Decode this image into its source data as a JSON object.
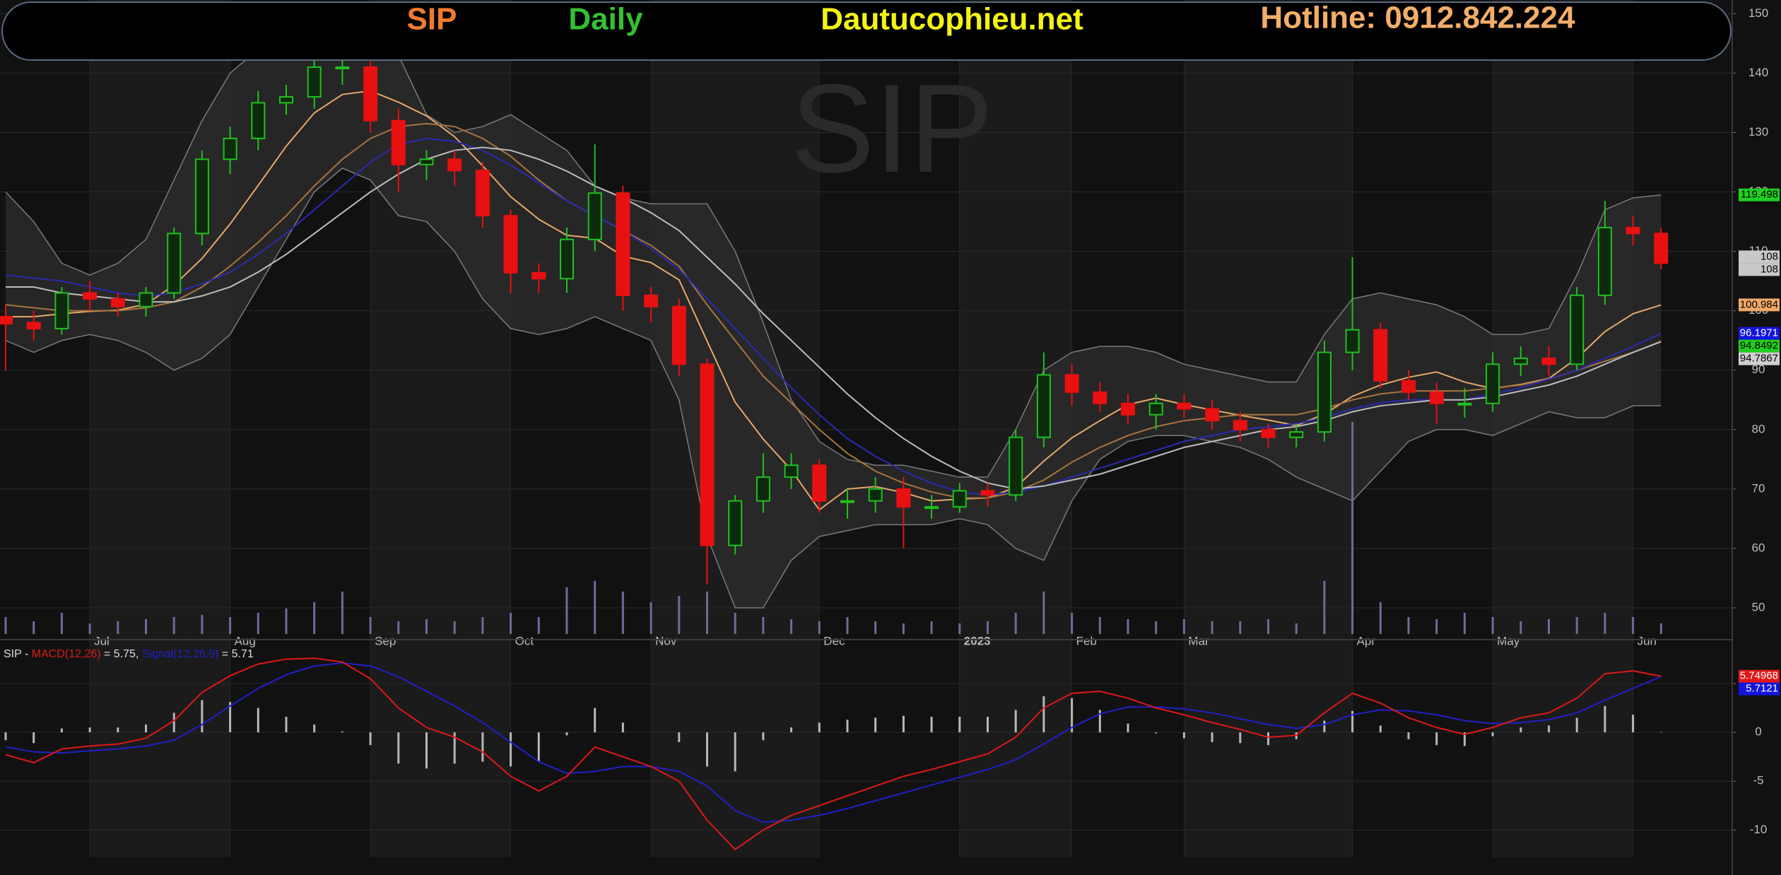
{
  "chart_data": {
    "type": "candlestick",
    "header": {
      "symbol": "SIP",
      "interval": "Daily",
      "site": "Dautucophieu.net",
      "hotline": "Hotline: 0912.842.224"
    },
    "watermark": "SIP",
    "categories": [
      null,
      null,
      null,
      "Jul",
      null,
      null,
      null,
      null,
      "Aug",
      null,
      null,
      null,
      null,
      "Sep",
      null,
      null,
      null,
      null,
      "Oct",
      null,
      null,
      null,
      null,
      "Nov",
      null,
      null,
      null,
      null,
      null,
      "Dec",
      null,
      null,
      null,
      null,
      "2023",
      null,
      null,
      null,
      "Feb",
      null,
      null,
      null,
      "Mar",
      null,
      null,
      null,
      null,
      null,
      "Apr",
      null,
      null,
      null,
      null,
      "May",
      null,
      null,
      null,
      null,
      "Jun",
      null
    ],
    "open": [
      99,
      98,
      97,
      103,
      102,
      100.7,
      103,
      113,
      125.5,
      129,
      135,
      136,
      141,
      141,
      132,
      124.6,
      125.5,
      123.6,
      116,
      106.4,
      105.4,
      112,
      119.8,
      102.6,
      100.7,
      91,
      60.5,
      68,
      72,
      74,
      68,
      68,
      70,
      67,
      67,
      69.7,
      69,
      78.7,
      89.2,
      86.3,
      84.4,
      82.5,
      84.4,
      83.5,
      81.5,
      80,
      78.7,
      79.6,
      93,
      96.8,
      88.2,
      86.3,
      84.4,
      84.4,
      91,
      92,
      91,
      102.6,
      114,
      113
    ],
    "high": [
      101,
      100,
      104,
      105,
      103,
      104,
      114,
      127,
      131,
      137,
      138,
      143,
      144,
      142,
      134,
      127,
      127,
      125,
      117,
      108,
      114,
      128,
      121,
      104,
      102,
      92,
      69,
      76,
      76,
      75,
      70,
      72,
      72,
      69,
      71,
      71,
      80,
      93,
      91,
      88,
      86,
      86,
      86,
      85,
      83,
      81,
      81,
      95,
      109,
      98,
      90,
      88,
      87,
      93,
      94,
      94,
      104,
      118.5,
      116,
      114
    ],
    "low": [
      90,
      95,
      96,
      100,
      99,
      99,
      102,
      111,
      123,
      127,
      133,
      134,
      138,
      130,
      120,
      122,
      121,
      114,
      103,
      103,
      103,
      110,
      100,
      98,
      89,
      54,
      59,
      66,
      70,
      66,
      65,
      66,
      60,
      65,
      66,
      67,
      68,
      77,
      84,
      83,
      81,
      80,
      82,
      80,
      78,
      77,
      77,
      78,
      90,
      87,
      85,
      81,
      82,
      83,
      89,
      89,
      90,
      101,
      111,
      107
    ],
    "close": [
      97.8,
      97,
      103,
      102,
      100.7,
      103,
      113,
      125.5,
      129,
      135,
      136,
      141,
      141,
      132,
      124.6,
      125.5,
      123.6,
      116,
      106.4,
      105.4,
      112,
      119.8,
      102.6,
      100.7,
      91,
      60.5,
      68,
      72,
      74,
      68,
      68,
      70,
      67,
      67,
      69.7,
      69,
      78.7,
      89.2,
      86.3,
      84.4,
      82.5,
      84.4,
      83.5,
      81.5,
      80,
      78.7,
      79.6,
      93,
      96.8,
      88.2,
      86.3,
      84.4,
      84.4,
      91,
      92,
      91,
      102.6,
      114,
      113,
      108
    ],
    "up_color": "#1fc01f",
    "down_color": "#e81010",
    "close_tag_color": "#c8c8c8",
    "bands": {
      "color": "#7a7a7a",
      "fill": "#2c2c2c",
      "upper": [
        120,
        115,
        108,
        106,
        108,
        112,
        122,
        132,
        140,
        144,
        146,
        147,
        146,
        145,
        143,
        133,
        130,
        131,
        133,
        130,
        127,
        121,
        119,
        118,
        118,
        118,
        110,
        98,
        85,
        78,
        75,
        74,
        74,
        73,
        72,
        72,
        80,
        90,
        93,
        94,
        94,
        93,
        91,
        90,
        89,
        88,
        88,
        96,
        102,
        103,
        102,
        101,
        99,
        96,
        96,
        97,
        106,
        117,
        119,
        119.498
      ],
      "lower": [
        95,
        93,
        95,
        96,
        95,
        93,
        90,
        92,
        96,
        104,
        112,
        120,
        124,
        122,
        116,
        115,
        110,
        102,
        97,
        96,
        97,
        99,
        97,
        95,
        85,
        62,
        50,
        50,
        58,
        62,
        63,
        64,
        64,
        64,
        65,
        64,
        60,
        58,
        68,
        75,
        78,
        79,
        79,
        78,
        77,
        75,
        72,
        70,
        68,
        73,
        78,
        80,
        80,
        79,
        81,
        83,
        82,
        82,
        84,
        84
      ],
      "tag_color": "#20d020"
    },
    "lines": [
      {
        "color": "#e6a86a",
        "tag_color": "#f0a868",
        "values": [
          99,
          99,
          99.5,
          99.9,
          100.1,
          101.1,
          104.3,
          108.8,
          114.6,
          121.1,
          127.7,
          133.3,
          136.4,
          137,
          135.1,
          132.8,
          129.3,
          124.4,
          119.2,
          115.4,
          112.7,
          112.2,
          109.2,
          108.1,
          105.2,
          94.9,
          84.6,
          78.4,
          73.2,
          66.5,
          70,
          70.4,
          69.4,
          68,
          68.3,
          68.5,
          70.3,
          74.7,
          78.6,
          81.5,
          84.2,
          85.3,
          84.2,
          83.3,
          82.4,
          81.6,
          80.7,
          82.6,
          85.6,
          87.5,
          88.8,
          89.7,
          88,
          86.9,
          87.6,
          88.6,
          92,
          96.5,
          99.5,
          100.984
        ]
      },
      {
        "color": "#a8743e",
        "tag_color": "#20d020",
        "values": [
          101,
          100.5,
          100,
          100,
          100,
          100.5,
          101.5,
          104,
          107.5,
          111.5,
          116,
          121,
          125.5,
          129,
          131,
          131.5,
          131,
          129,
          126,
          122,
          118.5,
          116,
          113.5,
          111,
          107.5,
          101,
          95,
          89,
          84.5,
          80,
          76,
          73,
          71,
          69.5,
          68.5,
          68.5,
          69.5,
          71.5,
          74.5,
          77,
          79,
          80.5,
          81.5,
          82,
          82.5,
          82.5,
          82.5,
          83.5,
          85,
          86,
          86.5,
          86.5,
          86.5,
          87,
          87.5,
          88.5,
          90,
          91.5,
          93,
          94.8492
        ]
      },
      {
        "color": "#2a2ab4",
        "tag_color": "#1414e0",
        "values": [
          106,
          105.5,
          105,
          104,
          103,
          102.5,
          103,
          104.5,
          106.5,
          109.5,
          113,
          117,
          121,
          125,
          128,
          129,
          128.5,
          127,
          124.5,
          121.5,
          118.5,
          116,
          113.5,
          110.5,
          107,
          102,
          97,
          92,
          87,
          82.5,
          78.5,
          75.5,
          73,
          71,
          69.5,
          69,
          69.5,
          70.5,
          72,
          73.5,
          75,
          76.5,
          78,
          79,
          80,
          80.5,
          81,
          82,
          83.5,
          84.5,
          85,
          85,
          85,
          86,
          87,
          88.5,
          90,
          92,
          94,
          96.1971
        ]
      },
      {
        "color": "#bdbdbd",
        "tag_color": "#d0d0d0",
        "values": [
          104,
          104,
          103,
          102.5,
          102,
          101.5,
          101.5,
          102.5,
          104,
          106.5,
          109.5,
          113,
          116.5,
          120,
          123,
          125.5,
          127,
          127.5,
          127,
          125.5,
          123.5,
          121,
          119,
          116.5,
          113.5,
          109,
          104.5,
          99.5,
          95,
          90.5,
          86,
          82,
          78.5,
          75.5,
          73,
          71,
          70,
          70.5,
          71.5,
          72.5,
          74,
          75.5,
          77,
          78,
          79,
          80,
          80.5,
          81.5,
          83,
          84,
          84.5,
          85,
          85,
          85.5,
          86.5,
          87.5,
          89,
          91,
          93,
          94.7867
        ]
      }
    ],
    "volume": {
      "color": "#6c6c9c",
      "values": [
        8,
        6,
        10,
        5,
        6,
        7,
        8,
        9,
        8,
        10,
        12,
        15,
        20,
        8,
        6,
        7,
        6,
        8,
        10,
        8,
        22,
        25,
        20,
        15,
        18,
        20,
        10,
        8,
        7,
        6,
        8,
        6,
        5,
        6,
        5,
        6,
        10,
        20,
        10,
        8,
        7,
        6,
        7,
        6,
        6,
        7,
        5,
        25,
        100,
        15,
        8,
        7,
        10,
        8,
        6,
        7,
        8,
        10,
        8,
        5
      ]
    },
    "ylim": [
      45.6,
      152.3
    ],
    "yticks": [
      50,
      60,
      70,
      80,
      90,
      100,
      110,
      120,
      130,
      140,
      150
    ],
    "grid": true,
    "indicator": {
      "type": "macd",
      "legend": {
        "prefix": "SIP -",
        "macd_name": "MACD(12,26)",
        "macd_text": "= 5.75,",
        "signal_name": "Signal(12,26,9)",
        "signal_text": "= 5.71"
      },
      "macd": {
        "color": "#e01818",
        "tag_color": "#e01818",
        "values": [
          -2.3,
          -3.1,
          -1.7,
          -1.4,
          -1.2,
          -0.6,
          1.2,
          4.1,
          5.8,
          7,
          7.5,
          7.6,
          7.2,
          5.5,
          2.5,
          0.5,
          -0.5,
          -2,
          -4.5,
          -6,
          -4.5,
          -1.5,
          -2.5,
          -3.5,
          -5,
          -9,
          -12,
          -10,
          -8.5,
          -7.5,
          -6.5,
          -5.5,
          -4.5,
          -3.8,
          -3,
          -2.2,
          -0.5,
          2.5,
          4,
          4.2,
          3.5,
          2.5,
          1.8,
          1,
          0.3,
          -0.5,
          -0.3,
          2,
          4,
          3,
          1.5,
          0.5,
          -0.2,
          0.5,
          1.5,
          2,
          3.5,
          6,
          6.3,
          5.74968
        ]
      },
      "signal": {
        "color": "#2020c8",
        "tag_color": "#1414e0",
        "values": [
          -1.5,
          -2,
          -2.1,
          -1.9,
          -1.7,
          -1.4,
          -0.8,
          0.8,
          2.7,
          4.5,
          5.9,
          6.8,
          7.1,
          6.8,
          5.7,
          4.2,
          2.7,
          1,
          -1,
          -3,
          -4.2,
          -4,
          -3.5,
          -3.5,
          -4,
          -5.5,
          -8,
          -9.2,
          -9,
          -8.5,
          -7.8,
          -7,
          -6.2,
          -5.4,
          -4.6,
          -3.8,
          -2.8,
          -1.2,
          0.5,
          1.9,
          2.6,
          2.6,
          2.4,
          2,
          1.4,
          0.8,
          0.4,
          0.8,
          1.8,
          2.3,
          2.2,
          1.8,
          1.2,
          0.9,
          1,
          1.3,
          2,
          3.3,
          4.5,
          5.7121
        ]
      },
      "histogram": {
        "color": "#b8b8b8",
        "values": [
          -0.8,
          -1.1,
          0.4,
          0.5,
          0.5,
          0.8,
          2,
          3.3,
          3.1,
          2.5,
          1.6,
          0.8,
          0.1,
          -1.3,
          -3.2,
          -3.7,
          -3.2,
          -3,
          -3.5,
          -3,
          -0.3,
          2.5,
          1,
          0,
          -1,
          -3.5,
          -4,
          -0.8,
          0.5,
          1,
          1.3,
          1.5,
          1.7,
          1.6,
          1.6,
          1.6,
          2.3,
          3.7,
          3.5,
          2.3,
          0.9,
          -0.1,
          -0.6,
          -1,
          -1.1,
          -1.3,
          -0.7,
          1.2,
          2.2,
          0.7,
          -0.7,
          -1.3,
          -1.4,
          -0.4,
          0.5,
          0.7,
          1.5,
          2.7,
          1.8,
          0.04
        ]
      },
      "ylim": [
        -12.8,
        8.7
      ],
      "yticks": [
        -10,
        -5,
        0,
        5
      ]
    }
  }
}
